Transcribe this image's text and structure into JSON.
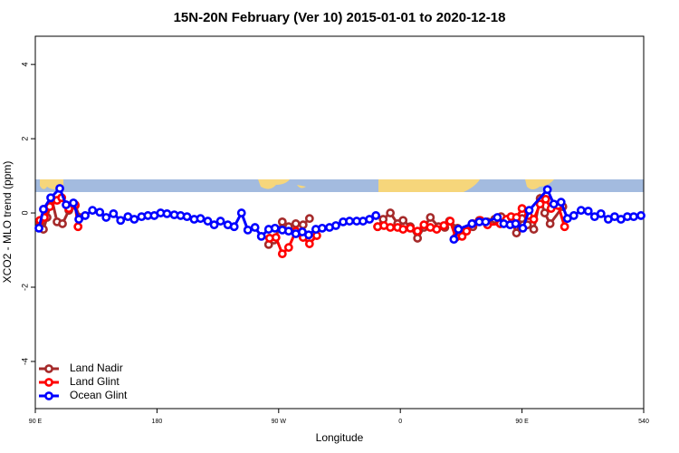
{
  "chart_data": {
    "type": "line",
    "title": "15N-20N February (Ver 10)   2015-01-01 to 2020-12-18",
    "x_label": "Longitude",
    "y_label": "XCO2 - MLO trend (ppm)",
    "xlim": [
      90,
      540
    ],
    "ylim": [
      -5.27,
      4.76
    ],
    "xticks": [
      {
        "value": 90,
        "label": "90 E"
      },
      180,
      {
        "value": 270,
        "label": "90 W"
      },
      {
        "value": 360,
        "label": "0"
      },
      {
        "value": 450,
        "label": "90 E"
      },
      540
    ],
    "yticks": [
      4,
      2,
      0,
      -2,
      -4
    ],
    "legend": "bottom-left",
    "series": [
      {
        "name": "Land Nadir",
        "color": "#a52a2a",
        "x": [
          93.4,
          96.0,
          98.7,
          102.1,
          106.1,
          110.1,
          114.8,
          119.5,
          122.9,
          262.6,
          266.6,
          272.7,
          277.4,
          282.7,
          288.1,
          292.8,
          343.2,
          347.3,
          352.6,
          358.0,
          362.0,
          367.4,
          372.7,
          377.5,
          382.2,
          388.2,
          392.9,
          396.3,
          402.3,
          407.7,
          413.7,
          418.4,
          424.5,
          429.8,
          434.5,
          437.9,
          442.6,
          445.9,
          450.0,
          454.0,
          458.7,
          463.4,
          466.8,
          470.8,
          480.2
        ],
        "values": [
          -0.27,
          -0.44,
          -0.12,
          0.39,
          -0.24,
          -0.29,
          0.07,
          0.2,
          -0.12,
          -0.85,
          -0.73,
          -0.24,
          -0.37,
          -0.29,
          -0.32,
          -0.15,
          -0.37,
          -0.17,
          0,
          -0.29,
          -0.2,
          -0.37,
          -0.68,
          -0.39,
          -0.12,
          -0.37,
          -0.39,
          -0.22,
          -0.41,
          -0.46,
          -0.37,
          -0.2,
          -0.24,
          -0.17,
          -0.1,
          -0.27,
          -0.24,
          -0.54,
          -0.15,
          -0.32,
          -0.44,
          0.39,
          0,
          -0.29,
          0.17
        ]
      },
      {
        "name": "Land Glint",
        "color": "#ff0000",
        "x": [
          93.4,
          96.7,
          100.7,
          106.1,
          109.5,
          114.8,
          119.5,
          121.6,
          263.3,
          268.0,
          272.7,
          277.4,
          282.7,
          288.1,
          292.8,
          298.2,
          343.2,
          347.9,
          352.6,
          358.0,
          362.0,
          367.4,
          372.7,
          377.5,
          382.2,
          386.9,
          392.2,
          396.9,
          401.0,
          405.7,
          409.0,
          413.7,
          419.1,
          424.5,
          433.9,
          438.6,
          441.9,
          445.9,
          450.0,
          454.7,
          458.7,
          463.4,
          467.5,
          471.5,
          476.8,
          481.5
        ],
        "values": [
          -0.2,
          -0.12,
          0.17,
          0.34,
          0.41,
          0.12,
          0.22,
          -0.37,
          -0.68,
          -0.66,
          -1.1,
          -0.93,
          -0.49,
          -0.66,
          -0.83,
          -0.61,
          -0.37,
          -0.34,
          -0.39,
          -0.39,
          -0.44,
          -0.41,
          -0.49,
          -0.32,
          -0.39,
          -0.44,
          -0.34,
          -0.22,
          -0.66,
          -0.63,
          -0.49,
          -0.29,
          -0.2,
          -0.32,
          -0.29,
          -0.17,
          -0.1,
          -0.12,
          0.12,
          -0.07,
          -0.17,
          0.24,
          0.37,
          0.12,
          0.2,
          -0.37
        ]
      },
      {
        "name": "Ocean Glint",
        "color": "#0000ff",
        "x": [
          92.7,
          96.0,
          101.4,
          108.1,
          112.8,
          118.2,
          122.2,
          126.9,
          132.3,
          137.7,
          142.4,
          147.8,
          153.1,
          158.5,
          163.2,
          168.6,
          173.3,
          178.0,
          182.7,
          187.4,
          192.8,
          197.5,
          202.2,
          207.5,
          212.2,
          217.6,
          222.3,
          227.0,
          232.4,
          237.1,
          242.5,
          247.2,
          252.5,
          257.2,
          262.6,
          267.3,
          272.7,
          277.4,
          282.7,
          287.5,
          292.2,
          297.5,
          302.2,
          307.6,
          312.3,
          317.7,
          322.4,
          327.7,
          332.4,
          337.2,
          341.9,
          399.6,
          403.0,
          413.0,
          418.4,
          423.1,
          431.8,
          436.5,
          441.2,
          445.3,
          450.6,
          455.3,
          468.8,
          473.5,
          478.9,
          483.6,
          488.3,
          493.7,
          499.0,
          503.7,
          508.4,
          513.8,
          518.5,
          523.2,
          527.9,
          532.6,
          538.0
        ],
        "values": [
          -0.41,
          0.1,
          0.41,
          0.66,
          0.22,
          0.27,
          -0.17,
          -0.07,
          0.07,
          0.02,
          -0.12,
          -0.02,
          -0.2,
          -0.1,
          -0.17,
          -0.1,
          -0.07,
          -0.07,
          0,
          -0.02,
          -0.05,
          -0.07,
          -0.1,
          -0.17,
          -0.15,
          -0.22,
          -0.32,
          -0.22,
          -0.32,
          -0.37,
          0,
          -0.46,
          -0.39,
          -0.63,
          -0.44,
          -0.41,
          -0.46,
          -0.49,
          -0.56,
          -0.51,
          -0.59,
          -0.44,
          -0.41,
          -0.39,
          -0.34,
          -0.24,
          -0.22,
          -0.22,
          -0.22,
          -0.17,
          -0.07,
          -0.71,
          -0.44,
          -0.29,
          -0.24,
          -0.24,
          -0.12,
          -0.29,
          -0.32,
          -0.29,
          -0.41,
          0.07,
          0.63,
          0.24,
          0.29,
          -0.15,
          -0.07,
          0.07,
          0.05,
          -0.1,
          -0.02,
          -0.17,
          -0.1,
          -0.17,
          -0.1,
          -0.1,
          -0.07
        ]
      }
    ]
  }
}
